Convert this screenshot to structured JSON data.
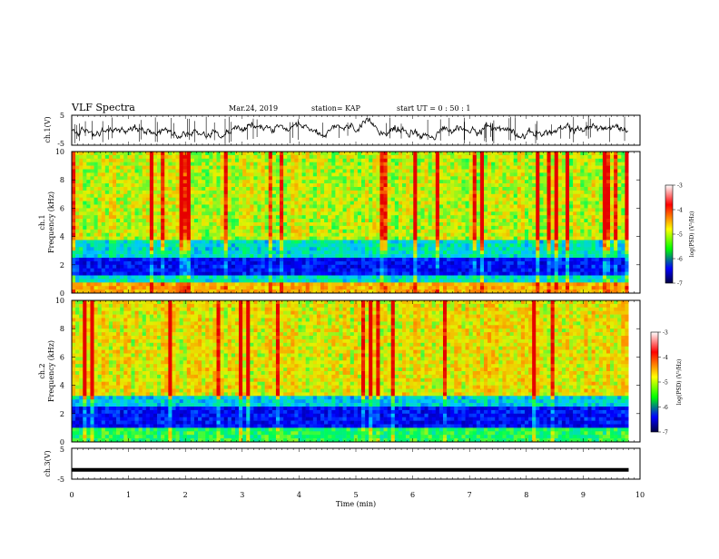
{
  "header": {
    "title": "VLF Spectra",
    "date": "Mar.24, 2019",
    "station": "station= KAP",
    "start": "start  UT =   0  : 50 : 1"
  },
  "chart_data": [
    {
      "type": "line",
      "name": "ch1-waveform",
      "ylabel": "ch.1(V)",
      "ylim": [
        -5,
        5
      ],
      "yticks": [
        "5",
        "-5"
      ],
      "xlim": [
        0,
        10
      ],
      "trace": "noisy waveform, mean approx 0 V, fluctuating roughly between -3 V and +3 V with many vertical spikes reaching the panel limits",
      "trace_end_min": 9.8
    },
    {
      "type": "heatmap",
      "name": "ch1-spectrogram",
      "ylabel": "ch.1\nFrequency  (kHz)",
      "ylabel_line1": "ch.1",
      "ylabel_line2": "Frequency  (kHz)",
      "ylim": [
        0,
        10
      ],
      "yticks": [
        "0",
        "2",
        "4",
        "6",
        "8",
        "10"
      ],
      "xlim": [
        0,
        10
      ],
      "data_end_min": 9.8,
      "description": "Low-intensity (blue) band 1-3 kHz, green 3-4 kHz, yellow/orange broadband 4-10 kHz with red vertical impulsive streaks; red/orange horizontal lines near 0.3-0.8 kHz"
    },
    {
      "type": "heatmap",
      "name": "ch2-spectrogram",
      "ylabel": "ch.2\nFrequency  (kHz)",
      "ylabel_line1": "ch.2",
      "ylabel_line2": "Frequency  (kHz)",
      "ylim": [
        0,
        10
      ],
      "yticks": [
        "0",
        "2",
        "4",
        "6",
        "8",
        "10"
      ],
      "xlim": [
        0,
        10
      ],
      "data_end_min": 9.8,
      "description": "Blue band 1-2.5 kHz, green 2.5-3.5 kHz, yellow/orange broadband above with red streaks; faint horizontal lines near 3.5 and 4.7 kHz"
    },
    {
      "type": "line",
      "name": "ch3-waveform",
      "ylabel": "ch.3(V)",
      "ylim": [
        -5,
        5
      ],
      "yticks": [
        "5",
        "-5"
      ],
      "xlim": [
        0,
        10
      ],
      "trace": "flat thick line at approx -2 V for whole record",
      "level_volts": -2,
      "trace_end_min": 9.8
    }
  ],
  "xaxis": {
    "label": "Time  (min)",
    "ticks": [
      "0",
      "1",
      "2",
      "3",
      "4",
      "5",
      "6",
      "7",
      "8",
      "9",
      "10"
    ]
  },
  "colorbars": [
    {
      "name": "ch1-colorbar",
      "ticks": [
        "-3",
        "-4",
        "-5",
        "-6",
        "-7"
      ],
      "label": "log(PSD) (V²/Hz)",
      "colors": [
        "#ffffff",
        "#ff0000",
        "#ffff00",
        "#00ff00",
        "#0000ff",
        "#000040"
      ]
    },
    {
      "name": "ch2-colorbar",
      "ticks": [
        "-3",
        "-4",
        "-5",
        "-6",
        "-7"
      ],
      "label": "log(PSD) (V²/Hz)",
      "colors": [
        "#ffffff",
        "#ff0000",
        "#ffff00",
        "#00ff00",
        "#0000ff",
        "#000040"
      ]
    }
  ]
}
